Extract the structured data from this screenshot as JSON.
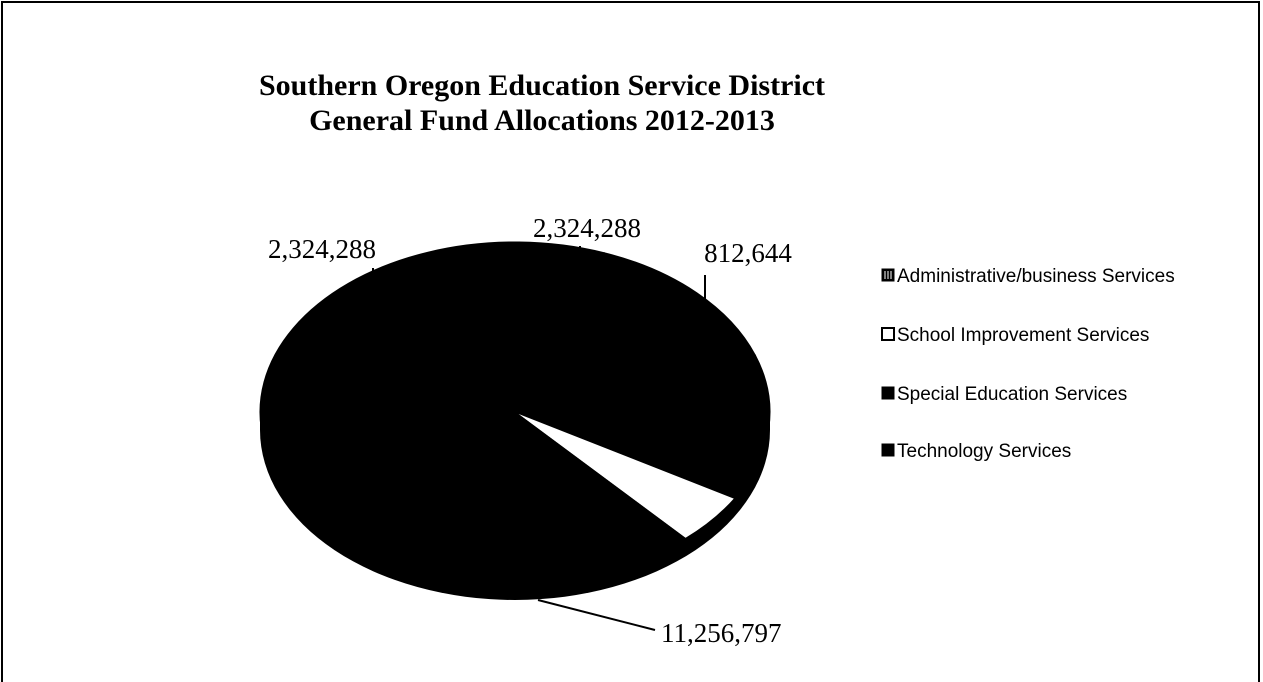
{
  "chart_data": {
    "type": "pie",
    "title": "Southern Oregon Education Service District",
    "subtitle": "General Fund Allocations 2012-2013",
    "legend_position": "right",
    "slices": [
      {
        "name": "Administrative/business Services",
        "value": 2324288,
        "label": "2,324,288",
        "fill": "#000000"
      },
      {
        "name": "School Improvement Services",
        "value": 812644,
        "label": "812,644",
        "fill": "#ffffff"
      },
      {
        "name": "Special Education Services",
        "value": 11256797,
        "label": "11,256,797",
        "fill": "#000000"
      },
      {
        "name": "Technology Services",
        "value": 2324288,
        "label": "2,324,288",
        "fill": "#000000"
      }
    ]
  }
}
